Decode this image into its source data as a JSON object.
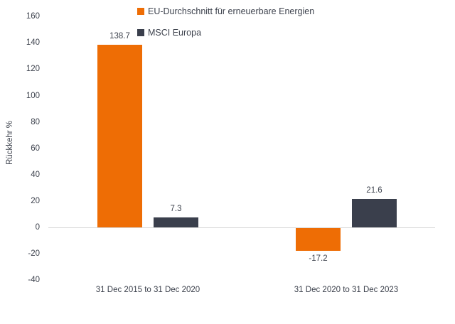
{
  "chart_data": {
    "type": "bar",
    "title": "",
    "ylabel": "Rückkehr %",
    "xlabel": "",
    "categories": [
      "31 Dec 2015 to 31 Dec 2020",
      "31 Dec 2020 to 31 Dec 2023"
    ],
    "series": [
      {
        "name": "EU-Durchschnitt für erneuerbare Energien",
        "color": "#EE6D05",
        "values": [
          138.7,
          -17.2
        ]
      },
      {
        "name": "MSCI Europa",
        "color": "#3A3F4C",
        "values": [
          7.3,
          21.6
        ]
      }
    ],
    "data_labels": [
      [
        "138.7",
        "-17.2"
      ],
      [
        "7.3",
        "21.6"
      ]
    ],
    "ylim": [
      -40,
      160
    ],
    "yticks": [
      160,
      140,
      120,
      100,
      80,
      60,
      40,
      20,
      0,
      -20,
      -40
    ],
    "grid": false,
    "legend_position": "top-center",
    "axis_line_color": "#D9D9D9",
    "text_color": "#3D424D",
    "background_color": "#FFFFFF"
  }
}
